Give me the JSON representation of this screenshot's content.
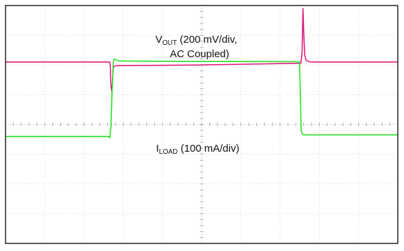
{
  "chart_data": {
    "type": "line",
    "title": "",
    "xlabel": "",
    "ylabel": "",
    "grid": true,
    "divisions": {
      "x": 10,
      "y": 8
    },
    "colors": {
      "vout": "#e0197a",
      "iload": "#22e022",
      "grid": "#c8c8c8",
      "frame": "#222222"
    },
    "annotations": {
      "vout": {
        "main": "V",
        "sub": "OUT",
        "rest": " (200 mV/div,",
        "line2": "AC Coupled)"
      },
      "iload": {
        "main": "I",
        "sub": "LOAD",
        "rest": " (100 mA/div)"
      }
    },
    "series": [
      {
        "key": "vout",
        "points": [
          [
            0,
            1.9
          ],
          [
            3.56,
            1.9
          ],
          [
            3.58,
            2.05
          ],
          [
            3.6,
            2.7
          ],
          [
            3.63,
            2.9
          ],
          [
            3.65,
            2.6
          ],
          [
            3.68,
            2.08
          ],
          [
            3.74,
            2.03
          ],
          [
            3.82,
            2.02
          ],
          [
            4.0,
            2.02
          ],
          [
            6.5,
            2.0
          ],
          [
            10.09,
            1.94
          ],
          [
            10.13,
            1.6
          ],
          [
            10.16,
            0.1
          ],
          [
            10.19,
            0.95
          ],
          [
            10.22,
            1.65
          ],
          [
            10.27,
            1.84
          ],
          [
            10.35,
            1.89
          ],
          [
            10.5,
            1.9
          ],
          [
            13.4,
            1.9
          ]
        ]
      },
      {
        "key": "iload",
        "points": [
          [
            0,
            4.4
          ],
          [
            3.52,
            4.4
          ],
          [
            3.56,
            4.45
          ],
          [
            3.6,
            4.1
          ],
          [
            3.64,
            2.9
          ],
          [
            3.68,
            1.9
          ],
          [
            3.71,
            1.8
          ],
          [
            3.76,
            1.82
          ],
          [
            3.85,
            1.86
          ],
          [
            4.2,
            1.87
          ],
          [
            6.5,
            1.88
          ],
          [
            10.04,
            1.89
          ],
          [
            10.06,
            2.5
          ],
          [
            10.1,
            4.2
          ],
          [
            10.14,
            4.33
          ],
          [
            10.19,
            4.35
          ],
          [
            10.4,
            4.35
          ],
          [
            13.4,
            4.35
          ]
        ]
      }
    ]
  }
}
